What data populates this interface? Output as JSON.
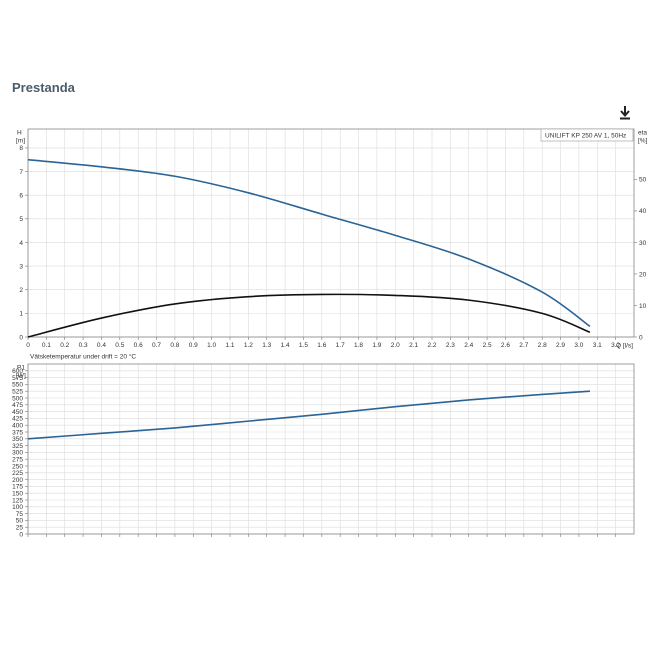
{
  "header": {
    "title": "Prestanda",
    "download_icon": "download-icon"
  },
  "colors": {
    "head_curve": "#2a6496",
    "efficiency_curve": "#111111",
    "power_curve": "#2a6496",
    "grid": "#dcdcdc",
    "title": "#4a5c6a"
  },
  "chart_data": [
    {
      "type": "line",
      "legend": "UNILIFT KP 250 AV 1, 50Hz",
      "legend_placement": "top-right",
      "grid": true,
      "xlabel": "Q [l/s]",
      "xlim": [
        0,
        3.3
      ],
      "xticks": [
        "0",
        "0.1",
        "0.2",
        "0.3",
        "0.4",
        "0.5",
        "0.6",
        "0.7",
        "0.8",
        "0.9",
        "1.0",
        "1.1",
        "1.2",
        "1.3",
        "1.4",
        "1.5",
        "1.6",
        "1.7",
        "1.8",
        "1.9",
        "2.0",
        "2.1",
        "2.2",
        "2.3",
        "2.4",
        "2.5",
        "2.6",
        "2.7",
        "2.8",
        "2.9",
        "3.0",
        "3.1",
        "3.2"
      ],
      "ylabel": "H",
      "yunit": "[m]",
      "ylim": [
        0,
        8.8
      ],
      "yticks": [
        "0",
        "1",
        "2",
        "3",
        "4",
        "5",
        "6",
        "7",
        "8"
      ],
      "y2label": "eta",
      "y2unit": "[%]",
      "y2lim": [
        0,
        66
      ],
      "y2ticks": [
        "0",
        "10",
        "20",
        "30",
        "40",
        "50"
      ],
      "series": [
        {
          "role": "head",
          "axis": "left",
          "x": [
            0,
            0.4,
            0.8,
            1.2,
            1.6,
            2.0,
            2.4,
            2.8,
            3.06
          ],
          "y": [
            7.5,
            7.2,
            6.8,
            6.1,
            5.2,
            4.3,
            3.3,
            1.9,
            0.45
          ]
        },
        {
          "role": "efficiency",
          "axis": "right",
          "x": [
            0,
            0.4,
            0.8,
            1.2,
            1.6,
            2.0,
            2.4,
            2.8,
            3.06
          ],
          "y": [
            0,
            6,
            10.5,
            12.8,
            13.5,
            13.2,
            11.7,
            7.5,
            1.5
          ]
        }
      ]
    },
    {
      "type": "line",
      "annotation": "Vätsketemperatur under drift = 20 °C",
      "grid": true,
      "xlim": [
        0,
        3.3
      ],
      "ylabel": "P1",
      "yunit": "[W]",
      "ylim": [
        0,
        625
      ],
      "yticks": [
        "0",
        "25",
        "50",
        "75",
        "100",
        "125",
        "150",
        "175",
        "200",
        "225",
        "250",
        "275",
        "300",
        "325",
        "350",
        "375",
        "400",
        "425",
        "450",
        "475",
        "500",
        "525",
        "550",
        "575",
        "600"
      ],
      "series": [
        {
          "role": "power",
          "axis": "left",
          "x": [
            0,
            0.4,
            0.8,
            1.2,
            1.6,
            2.0,
            2.4,
            2.8,
            3.06
          ],
          "y": [
            350,
            370,
            390,
            415,
            440,
            468,
            493,
            513,
            525
          ]
        }
      ]
    }
  ]
}
